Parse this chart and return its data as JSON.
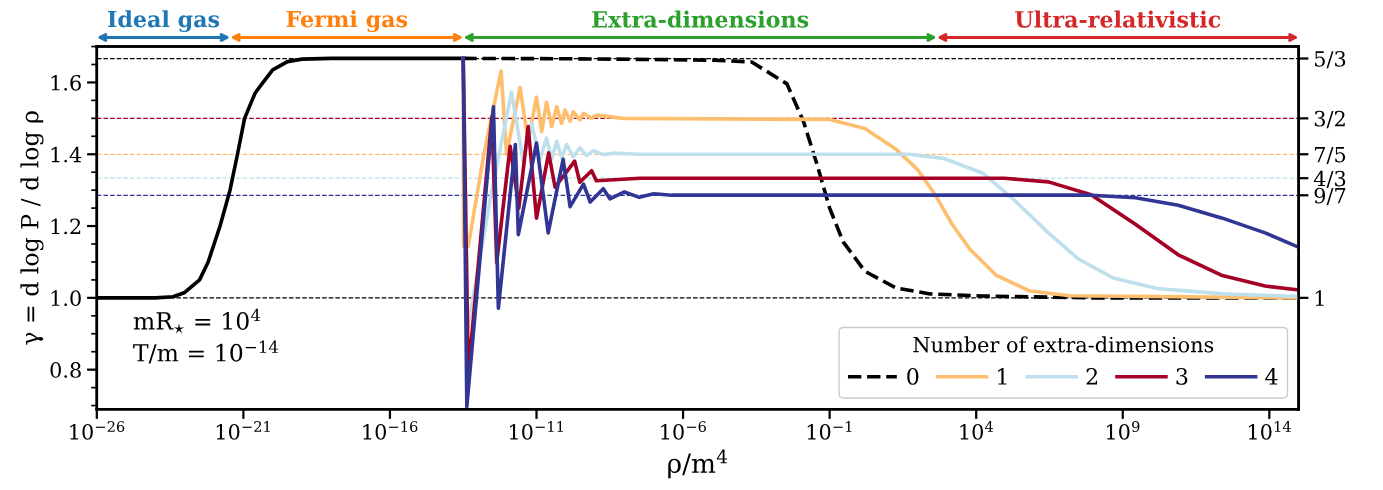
{
  "chart_data": {
    "type": "line",
    "xlabel": "ρ/m$^{4}$",
    "ylabel": "γ = d log P / d log ρ",
    "log": "x",
    "legend": "bottom right",
    "legend_title": "Number of extra-dimensions",
    "grid": false,
    "xlim": [
      1e-26,
      1000000000000000.0
    ],
    "ylim": [
      0.69,
      1.7
    ],
    "y2lim": [
      0.69,
      1.7
    ],
    "xticks": [
      {
        "value": 1e-26,
        "label": "10$^{−26}$"
      },
      {
        "value": 1e-21,
        "label": "10$^{−21}$"
      },
      {
        "value": 1e-16,
        "label": "10$^{−16}$"
      },
      {
        "value": 1e-11,
        "label": "10$^{−11}$"
      },
      {
        "value": 1e-06,
        "label": "10$^{−6}$"
      },
      {
        "value": 0.1,
        "label": "10$^{−1}$"
      },
      {
        "value": 10000.0,
        "label": "10$^{4}$"
      },
      {
        "value": 1000000000.0,
        "label": "10$^{9}$"
      },
      {
        "value": 100000000000000.0,
        "label": "10$^{14}$"
      }
    ],
    "yticks": [
      {
        "value": 0.8,
        "label": "0.8"
      },
      {
        "value": 1.0,
        "label": "1.0"
      },
      {
        "value": 1.2,
        "label": "1.2"
      },
      {
        "value": 1.4,
        "label": "1.4"
      },
      {
        "value": 1.6,
        "label": "1.6"
      }
    ],
    "y2ticks": [
      {
        "value": 1.6667,
        "label": "5/3"
      },
      {
        "value": 1.5,
        "label": "3/2"
      },
      {
        "value": 1.4,
        "label": "7/5"
      },
      {
        "value": 1.3333,
        "label": "4/3"
      },
      {
        "value": 1.2857,
        "label": "9/7"
      },
      {
        "value": 1.0,
        "label": "1"
      }
    ],
    "ref_lines": [
      {
        "axis": "y",
        "value": 1.6667,
        "color": "#000000",
        "line_style": "dashed"
      },
      {
        "axis": "y",
        "value": 1.5,
        "color": "#a50026",
        "line_style": "dashed"
      },
      {
        "axis": "y",
        "value": 1.4,
        "color": "#fdbf6f",
        "line_style": "dashed"
      },
      {
        "axis": "y",
        "value": 1.3333,
        "color": "#bde0ec",
        "line_style": "dashed"
      },
      {
        "axis": "y",
        "value": 1.2857,
        "color": "#313695",
        "line_style": "dashed"
      },
      {
        "axis": "y",
        "value": 1.0,
        "color": "#000000",
        "line_style": "dashed"
      }
    ],
    "annotations": [
      "Ideal gas",
      "Fermi gas",
      "Extra-dimensions",
      "Ultra-relativistic",
      "mR$_{⋆}$ = 10$^{4}$",
      "T/m = 10$^{−14}$"
    ],
    "series": [
      {
        "color": "#000000",
        "line_style": "solid",
        "x": [
          1e-26,
          1e-24,
          4e-24,
          1e-23,
          3.2e-23,
          6.3e-23,
          1.6e-22,
          3.5e-22,
          6.3e-22,
          1.1e-21,
          2.5e-21,
          4.7e-21,
          1e-20,
          3.2e-20,
          1e-19,
          1e-18,
          3.2e-14
        ],
        "values": [
          1.0,
          1.0,
          1.003,
          1.015,
          1.05,
          1.1,
          1.2,
          1.3,
          1.4,
          1.5,
          1.57,
          1.6,
          1.635,
          1.658,
          1.665,
          1.667,
          1.667
        ]
      },
      {
        "name": "0",
        "color": "#000000",
        "line_style": "dashed",
        "x": [
          3.2e-14,
          1e-10,
          1e-07,
          1e-05,
          0.00022,
          0.0035,
          0.013,
          0.037,
          0.1,
          0.29,
          1.6,
          19,
          270,
          17000,
          83000000.0,
          1000000000000000.0
        ],
        "values": [
          1.667,
          1.666,
          1.664,
          1.662,
          1.657,
          1.596,
          1.49,
          1.372,
          1.25,
          1.156,
          1.074,
          1.027,
          1.011,
          1.005,
          1.0,
          1.0
        ]
      },
      {
        "name": "1",
        "color": "#fdbf6f",
        "x": [
          3.16e-14,
          3.24e-14,
          4.7e-14,
          1.6e-13,
          6.2e-13,
          9.5e-13,
          2.75e-12,
          5.2e-12,
          1e-11,
          1.5e-11,
          2.2e-11,
          3.3e-11,
          4.9e-11,
          7.2e-11,
          9.3e-11,
          1.4e-10,
          1.8e-10,
          3e-10,
          4e-10,
          7.6e-10,
          1.1e-09,
          9.1e-09,
          0.1,
          1.6,
          19,
          98,
          400,
          1500,
          6300,
          48000,
          690000.0,
          16000000.0,
          1000000000000000.0
        ],
        "values": [
          1.667,
          1.144,
          1.144,
          1.4,
          1.632,
          1.4,
          1.586,
          1.436,
          1.559,
          1.463,
          1.545,
          1.477,
          1.532,
          1.486,
          1.523,
          1.492,
          1.518,
          1.496,
          1.514,
          1.5,
          1.509,
          1.5,
          1.497,
          1.472,
          1.413,
          1.358,
          1.287,
          1.205,
          1.134,
          1.063,
          1.019,
          1.006,
          1.0
        ]
      },
      {
        "name": "2",
        "color": "#bde0ec",
        "x": [
          3.16e-14,
          4.5e-14,
          2.6e-13,
          1.4e-12,
          3.5e-12,
          6.8e-12,
          1.3e-11,
          2.2e-11,
          3.3e-11,
          4.9e-11,
          7.2e-11,
          1.07e-10,
          1.8e-10,
          3e-10,
          5.1e-10,
          8.7e-10,
          1.9e-09,
          4.2e-09,
          3.4e-08,
          51,
          790,
          17000,
          180000.0,
          2900000.0,
          30000000.0,
          480000000.0,
          15000000000.0,
          2500000000000.0,
          1000000000000000.0
        ],
        "values": [
          1.667,
          0.916,
          1.272,
          1.573,
          1.381,
          1.486,
          1.386,
          1.445,
          1.386,
          1.436,
          1.39,
          1.427,
          1.393,
          1.418,
          1.396,
          1.41,
          1.399,
          1.403,
          1.4,
          1.4,
          1.388,
          1.347,
          1.276,
          1.181,
          1.109,
          1.055,
          1.026,
          1.011,
          1.004
        ]
      },
      {
        "name": "3",
        "color": "#a50026",
        "x": [
          3.16e-14,
          4.7e-14,
          3e-13,
          4.4e-13,
          1.26e-12,
          2.5e-12,
          5.2e-12,
          1e-11,
          2.6e-11,
          4.3e-11,
          2e-10,
          3e-10,
          7.6e-10,
          1.1e-09,
          3.4e-08,
          91000,
          2900000.0,
          83000000.0,
          2700000000.0,
          78000000000.0,
          2500000000000.0,
          72000000000000.0,
          1000000000000000.0
        ],
        "values": [
          1.667,
          0.788,
          1.504,
          1.098,
          1.422,
          1.25,
          1.477,
          1.222,
          1.404,
          1.308,
          1.381,
          1.322,
          1.354,
          1.326,
          1.333,
          1.333,
          1.323,
          1.287,
          1.205,
          1.12,
          1.062,
          1.033,
          1.022
        ]
      },
      {
        "name": "4",
        "color": "#313695",
        "x": [
          3.16e-14,
          4.2e-14,
          3.4e-13,
          5e-13,
          1.9e-12,
          2.4e-12,
          1e-11,
          2.5e-11,
          8.1e-11,
          1.4e-10,
          4e-10,
          6.8e-10,
          1.9e-09,
          3.2e-09,
          1e-08,
          3.2e-08,
          1e-07,
          4.1e-07,
          83000000.0,
          2700000000.0,
          78000000000.0,
          2500000000000.0,
          72000000000000.0,
          1000000000000000.0
        ],
        "values": [
          1.667,
          0.697,
          1.532,
          0.971,
          1.427,
          1.176,
          1.431,
          1.181,
          1.386,
          1.254,
          1.317,
          1.267,
          1.304,
          1.276,
          1.295,
          1.28,
          1.29,
          1.286,
          1.286,
          1.279,
          1.258,
          1.222,
          1.181,
          1.141
        ]
      }
    ]
  }
}
